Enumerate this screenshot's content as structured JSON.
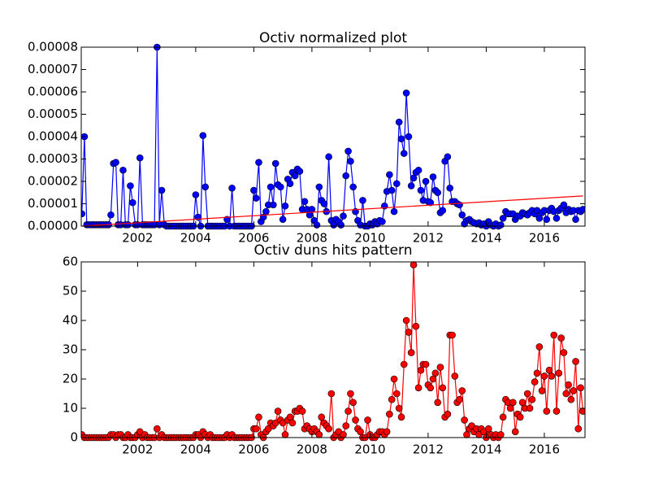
{
  "chart_data": [
    {
      "type": "line",
      "title": "Octiv normalized plot",
      "xlim": [
        2000.06,
        2017.4
      ],
      "xticks": [
        2002,
        2004,
        2006,
        2008,
        2010,
        2012,
        2014,
        2016
      ],
      "ylim": [
        0,
        8e-05
      ],
      "yticks": [
        {
          "value": 0,
          "label": "0.00000"
        },
        {
          "value": 1e-05,
          "label": "0.00001"
        },
        {
          "value": 2e-05,
          "label": "0.00002"
        },
        {
          "value": 3e-05,
          "label": "0.00003"
        },
        {
          "value": 4e-05,
          "label": "0.00004"
        },
        {
          "value": 5e-05,
          "label": "0.00005"
        },
        {
          "value": 6e-05,
          "label": "0.00006"
        },
        {
          "value": 7e-05,
          "label": "0.00007"
        },
        {
          "value": 8e-05,
          "label": "0.00008"
        }
      ],
      "series": [
        {
          "color": "#0000ff",
          "markers": true,
          "x": [
            2000.08,
            2000.17,
            2000.25,
            2000.33,
            2000.42,
            2000.5,
            2000.58,
            2000.67,
            2000.75,
            2000.83,
            2000.92,
            2001,
            2001.08,
            2001.17,
            2001.25,
            2001.33,
            2001.42,
            2001.5,
            2001.58,
            2001.67,
            2001.75,
            2001.83,
            2001.92,
            2002,
            2002.08,
            2002.17,
            2002.25,
            2002.33,
            2002.42,
            2002.5,
            2002.58,
            2002.67,
            2002.75,
            2002.83,
            2002.92,
            2003,
            2003.08,
            2003.17,
            2003.25,
            2003.33,
            2003.42,
            2003.5,
            2003.58,
            2003.67,
            2003.75,
            2003.83,
            2003.92,
            2004,
            2004.08,
            2004.17,
            2004.25,
            2004.33,
            2004.42,
            2004.5,
            2004.58,
            2004.67,
            2004.75,
            2004.83,
            2004.92,
            2005,
            2005.08,
            2005.17,
            2005.25,
            2005.33,
            2005.42,
            2005.5,
            2005.58,
            2005.67,
            2005.75,
            2005.83,
            2005.92,
            2006,
            2006.08,
            2006.17,
            2006.25,
            2006.33,
            2006.42,
            2006.5,
            2006.58,
            2006.67,
            2006.75,
            2006.83,
            2006.92,
            2007,
            2007.08,
            2007.17,
            2007.25,
            2007.33,
            2007.42,
            2007.5,
            2007.58,
            2007.67,
            2007.75,
            2007.83,
            2007.92,
            2008,
            2008.08,
            2008.17,
            2008.25,
            2008.33,
            2008.42,
            2008.5,
            2008.58,
            2008.67,
            2008.75,
            2008.83,
            2008.92,
            2009,
            2009.08,
            2009.17,
            2009.25,
            2009.33,
            2009.42,
            2009.5,
            2009.58,
            2009.67,
            2009.75,
            2009.83,
            2009.92,
            2010,
            2010.08,
            2010.17,
            2010.25,
            2010.33,
            2010.42,
            2010.5,
            2010.58,
            2010.67,
            2010.75,
            2010.83,
            2010.92,
            2011,
            2011.08,
            2011.17,
            2011.25,
            2011.33,
            2011.42,
            2011.5,
            2011.58,
            2011.67,
            2011.75,
            2011.83,
            2011.92,
            2012,
            2012.08,
            2012.17,
            2012.25,
            2012.33,
            2012.42,
            2012.5,
            2012.58,
            2012.67,
            2012.75,
            2012.83,
            2012.92,
            2013,
            2013.08,
            2013.17,
            2013.25,
            2013.33,
            2013.42,
            2013.5,
            2013.58,
            2013.67,
            2013.75,
            2013.83,
            2013.92,
            2014,
            2014.08,
            2014.17,
            2014.25,
            2014.33,
            2014.42,
            2014.5,
            2014.58,
            2014.67,
            2014.75,
            2014.83,
            2014.92,
            2015,
            2015.08,
            2015.17,
            2015.25,
            2015.33,
            2015.42,
            2015.5,
            2015.58,
            2015.67,
            2015.75,
            2015.83,
            2015.92,
            2016,
            2016.08,
            2016.17,
            2016.25,
            2016.33,
            2016.42,
            2016.5,
            2016.58,
            2016.67,
            2016.75,
            2016.83,
            2016.92,
            2017,
            2017.08,
            2017.17,
            2017.25,
            2017.33
          ],
          "values": [
            5.5e-06,
            4e-05,
            6e-07,
            6e-07,
            6e-07,
            6e-07,
            6e-07,
            6e-07,
            6e-07,
            6e-07,
            6e-07,
            6e-07,
            5e-06,
            2.8e-05,
            2.85e-05,
            6e-07,
            6e-07,
            2.5e-05,
            6e-07,
            6e-07,
            1.8e-05,
            1.05e-05,
            6e-07,
            6e-07,
            3.05e-05,
            6e-07,
            6e-07,
            6e-07,
            6e-07,
            6e-07,
            6e-07,
            8e-05,
            6e-07,
            1.6e-05,
            6e-07,
            0,
            0,
            0,
            0,
            0,
            0,
            0,
            0,
            0,
            0,
            0,
            0,
            1.4e-05,
            4e-06,
            0,
            4.05e-05,
            1.75e-05,
            0,
            0,
            0,
            0,
            0,
            0,
            0,
            0,
            3e-06,
            0,
            1.7e-05,
            0,
            0,
            0,
            0,
            0,
            0,
            0,
            0,
            1.6e-05,
            1.25e-05,
            2.85e-05,
            2e-06,
            4e-06,
            6.5e-06,
            9.5e-06,
            1.75e-05,
            9.5e-06,
            2.8e-05,
            1.85e-05,
            1.75e-05,
            3e-06,
            9e-06,
            2.1e-05,
            1.9e-05,
            2.4e-05,
            2.25e-05,
            2.55e-05,
            2.45e-05,
            7.5e-06,
            1.1e-05,
            7.5e-06,
            5e-06,
            7.5e-06,
            2.5e-06,
            5e-07,
            1.75e-05,
            1.15e-05,
            1e-05,
            6.5e-06,
            3.1e-05,
            2.5e-06,
            5e-07,
            3e-06,
            2e-06,
            5e-07,
            4.5e-06,
            2.25e-05,
            3.35e-05,
            2.9e-05,
            1.75e-05,
            6.5e-06,
            2.5e-06,
            5e-07,
            1.15e-05,
            0,
            0,
            1e-06,
            5e-07,
            2e-06,
            1e-06,
            2.5e-06,
            2e-06,
            9e-06,
            1.55e-05,
            2.3e-05,
            1.6e-05,
            6.5e-06,
            1.9e-05,
            4.65e-05,
            3.9e-05,
            3.25e-05,
            5.95e-05,
            4e-05,
            1.8e-05,
            2.15e-05,
            2.4e-05,
            2.5e-05,
            1.6e-05,
            1.15e-05,
            2e-05,
            1.1e-05,
            1.05e-05,
            2.2e-05,
            1.6e-05,
            1.5e-05,
            6e-06,
            7e-06,
            2.9e-05,
            3.1e-05,
            1.7e-05,
            1.1e-05,
            1.1e-05,
            1e-05,
            9.5e-06,
            5e-06,
            1e-06,
            2.5e-06,
            3e-06,
            2e-06,
            1.5e-06,
            1e-06,
            1.5e-06,
            5e-07,
            1e-06,
            0,
            2e-06,
            5e-07,
            0,
            1e-06,
            0,
            5e-07,
            3.5e-06,
            6.5e-06,
            5.5e-06,
            5.5e-06,
            5.5e-06,
            3e-06,
            4.5e-06,
            4.5e-06,
            6e-06,
            5.5e-06,
            5e-06,
            6e-06,
            7e-06,
            5.5e-06,
            7e-06,
            3.5e-06,
            6e-06,
            7e-06,
            3e-06,
            7e-06,
            8e-06,
            6.5e-06,
            3.5e-06,
            7e-06,
            8e-06,
            9.5e-06,
            6e-06,
            7.5e-06,
            6.5e-06,
            7e-06,
            3e-06,
            7e-06,
            6.5e-06,
            7.5e-06
          ]
        },
        {
          "color": "#ff0000",
          "markers": false,
          "x": [
            2000.08,
            2017.33
          ],
          "values": [
            0,
            1.35e-05
          ]
        }
      ]
    },
    {
      "type": "line",
      "title": "Octiv duns hits pattern",
      "xlim": [
        2000.06,
        2017.4
      ],
      "xticks": [
        2002,
        2004,
        2006,
        2008,
        2010,
        2012,
        2014,
        2016
      ],
      "ylim": [
        0,
        60
      ],
      "yticks": [
        0,
        10,
        20,
        30,
        40,
        50,
        60
      ],
      "series": [
        {
          "color": "#ff0000",
          "markers": true,
          "x": [
            2000.08,
            2000.17,
            2000.25,
            2000.33,
            2000.42,
            2000.5,
            2000.58,
            2000.67,
            2000.75,
            2000.83,
            2000.92,
            2001,
            2001.08,
            2001.17,
            2001.25,
            2001.33,
            2001.42,
            2001.5,
            2001.58,
            2001.67,
            2001.75,
            2001.83,
            2001.92,
            2002,
            2002.08,
            2002.17,
            2002.25,
            2002.33,
            2002.42,
            2002.5,
            2002.58,
            2002.67,
            2002.75,
            2002.83,
            2002.92,
            2003,
            2003.08,
            2003.17,
            2003.25,
            2003.33,
            2003.42,
            2003.5,
            2003.58,
            2003.67,
            2003.75,
            2003.83,
            2003.92,
            2004,
            2004.08,
            2004.17,
            2004.25,
            2004.33,
            2004.42,
            2004.5,
            2004.58,
            2004.67,
            2004.75,
            2004.83,
            2004.92,
            2005,
            2005.08,
            2005.17,
            2005.25,
            2005.33,
            2005.42,
            2005.5,
            2005.58,
            2005.67,
            2005.75,
            2005.83,
            2005.92,
            2006,
            2006.08,
            2006.17,
            2006.25,
            2006.33,
            2006.42,
            2006.5,
            2006.58,
            2006.67,
            2006.75,
            2006.83,
            2006.92,
            2007,
            2007.08,
            2007.17,
            2007.25,
            2007.33,
            2007.42,
            2007.5,
            2007.58,
            2007.67,
            2007.75,
            2007.83,
            2007.92,
            2008,
            2008.08,
            2008.17,
            2008.25,
            2008.33,
            2008.42,
            2008.5,
            2008.58,
            2008.67,
            2008.75,
            2008.83,
            2008.92,
            2009,
            2009.08,
            2009.17,
            2009.25,
            2009.33,
            2009.42,
            2009.5,
            2009.58,
            2009.67,
            2009.75,
            2009.83,
            2009.92,
            2010,
            2010.08,
            2010.17,
            2010.25,
            2010.33,
            2010.42,
            2010.5,
            2010.58,
            2010.67,
            2010.75,
            2010.83,
            2010.92,
            2011,
            2011.08,
            2011.17,
            2011.25,
            2011.33,
            2011.42,
            2011.5,
            2011.58,
            2011.67,
            2011.75,
            2011.83,
            2011.92,
            2012,
            2012.08,
            2012.17,
            2012.25,
            2012.33,
            2012.42,
            2012.5,
            2012.58,
            2012.67,
            2012.75,
            2012.83,
            2012.92,
            2013,
            2013.08,
            2013.17,
            2013.25,
            2013.33,
            2013.42,
            2013.5,
            2013.58,
            2013.67,
            2013.75,
            2013.83,
            2013.92,
            2014,
            2014.08,
            2014.17,
            2014.25,
            2014.33,
            2014.42,
            2014.5,
            2014.58,
            2014.67,
            2014.75,
            2014.83,
            2014.92,
            2015,
            2015.08,
            2015.17,
            2015.25,
            2015.33,
            2015.42,
            2015.5,
            2015.58,
            2015.67,
            2015.75,
            2015.83,
            2015.92,
            2016,
            2016.08,
            2016.17,
            2016.25,
            2016.33,
            2016.42,
            2016.5,
            2016.58,
            2016.67,
            2016.75,
            2016.83,
            2016.92,
            2017,
            2017.08,
            2017.17,
            2017.25,
            2017.33
          ],
          "values": [
            1,
            0,
            0,
            0,
            0,
            0,
            0,
            0,
            0,
            0,
            0,
            0,
            1,
            1,
            0,
            1,
            1,
            0,
            0,
            1,
            0,
            0,
            0,
            1,
            2,
            0,
            1,
            0,
            0,
            0,
            0,
            3,
            0,
            1,
            0,
            0,
            0,
            0,
            0,
            0,
            0,
            0,
            0,
            0,
            0,
            0,
            0,
            1,
            1,
            0,
            2,
            1,
            0,
            1,
            0,
            0,
            0,
            0,
            0,
            0,
            1,
            0,
            1,
            0,
            0,
            0,
            0,
            0,
            0,
            0,
            0,
            3,
            3,
            7,
            1,
            0,
            2,
            3,
            5,
            4,
            5,
            9,
            6,
            5,
            1,
            6,
            7,
            5,
            9,
            9,
            10,
            9,
            3,
            4,
            3,
            2,
            3,
            2,
            1,
            7,
            5,
            4,
            3,
            15,
            0,
            1,
            2,
            0,
            1,
            4,
            9,
            15,
            12,
            6,
            3,
            2,
            0,
            0,
            6,
            1,
            0,
            0,
            1,
            2,
            2,
            1,
            2,
            8,
            13,
            20,
            15,
            10,
            7,
            25,
            40,
            36,
            29,
            59,
            38,
            17,
            23,
            25,
            25,
            18,
            17,
            20,
            22,
            12,
            24,
            17,
            7,
            8,
            35,
            35,
            21,
            12,
            13,
            16,
            6,
            1,
            3,
            4,
            2,
            3,
            1,
            3,
            2,
            0,
            3,
            1,
            0,
            1,
            0,
            1,
            7,
            13,
            12,
            10,
            12,
            2,
            8,
            7,
            12,
            10,
            15,
            10,
            13,
            19,
            22,
            31,
            16,
            21,
            9,
            23,
            21,
            35,
            9,
            22,
            34,
            29,
            15,
            18,
            13,
            16,
            26,
            3,
            17,
            9
          ]
        }
      ]
    }
  ]
}
